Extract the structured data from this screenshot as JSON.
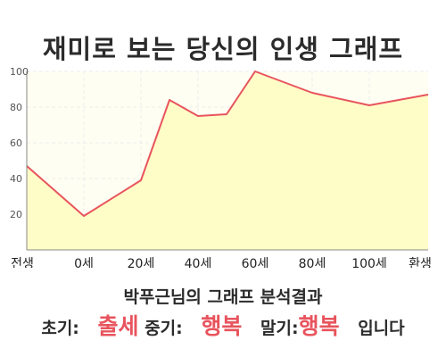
{
  "title": "재미로 보는 당신의 인생 그래프",
  "chart_data": {
    "type": "area",
    "x_labels": [
      "전생",
      "0세",
      "20세",
      "40세",
      "60세",
      "80세",
      "100세",
      "환생"
    ],
    "points": [
      {
        "x": "전생",
        "y": 47
      },
      {
        "x": "0세",
        "y": 19
      },
      {
        "x": "20세",
        "y": 39
      },
      {
        "x": "30세",
        "y": 84
      },
      {
        "x": "40세",
        "y": 75
      },
      {
        "x": "50세",
        "y": 76
      },
      {
        "x": "60세",
        "y": 100
      },
      {
        "x": "80세",
        "y": 88
      },
      {
        "x": "100세",
        "y": 81
      },
      {
        "x": "환생",
        "y": 87
      }
    ],
    "yticks": [
      20,
      40,
      60,
      80,
      100
    ],
    "ylim": [
      0,
      100
    ],
    "grid": true,
    "line_color": "#e8545d",
    "fill_color": "#fffdc7"
  },
  "summary_line": "박푸근님의 그래프 분석결과",
  "results": {
    "early_label": "초기:",
    "early_value": "출세",
    "mid_label": "중기:",
    "mid_value": "행복",
    "late_label": "말기:",
    "late_value": "행복",
    "ending": "입니다"
  },
  "highlight_color": "#e8545d"
}
